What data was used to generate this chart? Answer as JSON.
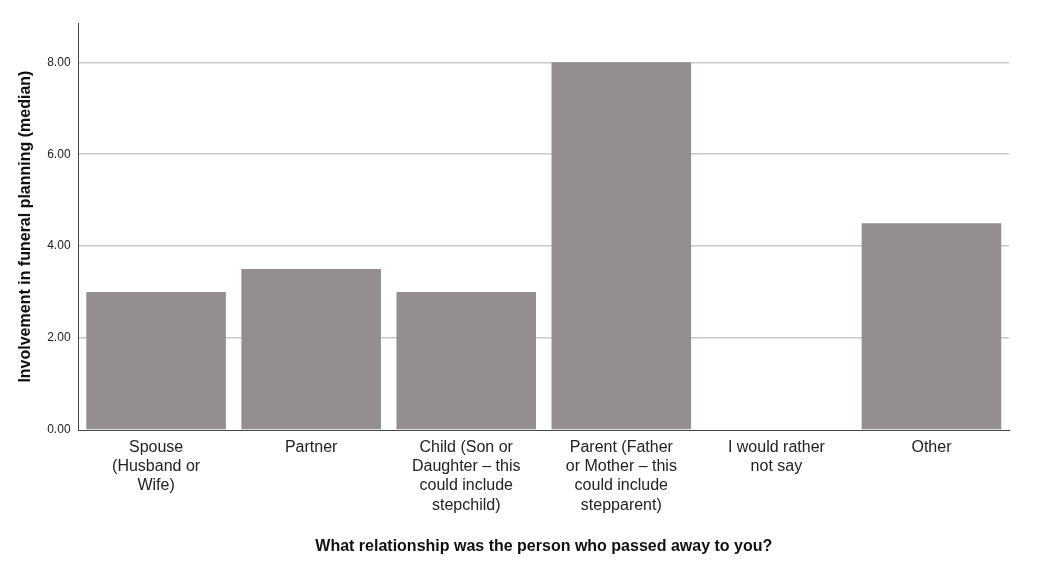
{
  "chart_data": {
    "type": "bar",
    "xlabel": "What relationship was the person who passed away to you?",
    "ylabel": "Involvement in funeral planning (median)",
    "categories": [
      "Spouse (Husband or Wife)",
      "Partner",
      "Child (Son or Daughter – this could include stepchild)",
      "Parent (Father or Mother – this could include stepparent)",
      "I would rather not say",
      "Other"
    ],
    "values": [
      3,
      3.5,
      3,
      8,
      null,
      4.5
    ],
    "color": "#948f8e",
    "ylim": [
      0,
      8.85
    ],
    "yticks": [
      {
        "value": 0,
        "label": "0.00"
      },
      {
        "value": 2,
        "label": "2.00"
      },
      {
        "value": 4,
        "label": "4.00"
      },
      {
        "value": 6,
        "label": "6.00"
      },
      {
        "value": 8,
        "label": "8.00"
      }
    ],
    "grid": "y",
    "legend": false
  }
}
